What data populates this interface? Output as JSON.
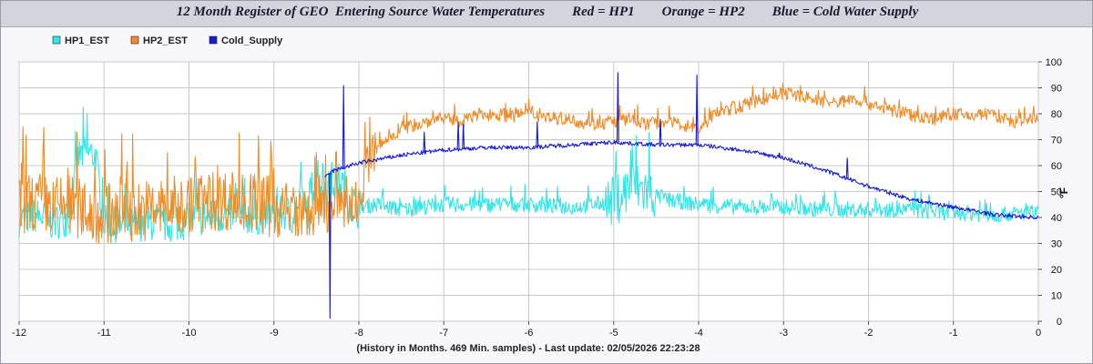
{
  "chart_data": {
    "type": "line",
    "title": "12 Month Register of GEO  Entering Source Water Temperatures        Red = HP1        Orange = HP2        Blue = Cold Water Supply",
    "xlabel": "(History in Months. 469 Min. samples) - Last update: 02/05/2026 22:23:28",
    "ylabel": "°F",
    "xlim": [
      -12,
      0
    ],
    "ylim": [
      0,
      100
    ],
    "x_ticks": [
      "-12",
      "-11",
      "-10",
      "-9",
      "-8",
      "-7",
      "-6",
      "-5",
      "-4",
      "-3",
      "-2",
      "-1",
      "0"
    ],
    "y_ticks": [
      "0",
      "10",
      "20",
      "30",
      "40",
      "50",
      "60",
      "70",
      "80",
      "90",
      "100"
    ],
    "grid": true,
    "legend_position": "top-left",
    "series": [
      {
        "name": "HP1_EST",
        "color": "#33e6e6",
        "x": [
          -12,
          -11.8,
          -11.6,
          -11.4,
          -11.3,
          -11.2,
          -11.1,
          -11.0,
          -10.8,
          -10.5,
          -10.2,
          -10.0,
          -9.8,
          -9.5,
          -9.2,
          -9.0,
          -8.8,
          -8.6,
          -8.5,
          -8.4,
          -8.3,
          -8.2,
          -8.1,
          -8.0,
          -7.8,
          -7.5,
          -7.0,
          -6.5,
          -6.0,
          -5.5,
          -5.0,
          -4.8,
          -4.6,
          -4.4,
          -4.0,
          -3.5,
          -3.0,
          -2.5,
          -2.0,
          -1.5,
          -1.2,
          -1.0,
          -0.5,
          0
        ],
        "values": [
          39,
          41,
          38,
          40,
          64,
          65,
          64,
          38,
          37,
          38,
          37,
          39,
          40,
          41,
          40,
          41,
          42,
          43,
          58,
          50,
          54,
          52,
          46,
          44,
          45,
          43,
          45,
          45,
          45,
          44,
          46,
          52,
          50,
          47,
          45,
          44,
          44,
          43,
          43,
          43,
          42,
          42,
          41,
          42
        ]
      },
      {
        "name": "HP2_EST",
        "color": "#f08c28",
        "x": [
          -12,
          -11.8,
          -11.6,
          -11.4,
          -11.2,
          -11.0,
          -10.8,
          -10.5,
          -10.2,
          -10.0,
          -9.8,
          -9.5,
          -9.2,
          -9.0,
          -8.8,
          -8.6,
          -8.4,
          -8.2,
          -8.0,
          -7.9,
          -7.8,
          -7.6,
          -7.4,
          -7.2,
          -7.0,
          -6.8,
          -6.6,
          -6.4,
          -6.2,
          -6.0,
          -5.8,
          -5.6,
          -5.4,
          -5.2,
          -5.0,
          -4.8,
          -4.6,
          -4.4,
          -4.2,
          -4.0,
          -3.8,
          -3.6,
          -3.4,
          -3.2,
          -3.0,
          -2.8,
          -2.6,
          -2.4,
          -2.2,
          -2.0,
          -1.8,
          -1.6,
          -1.4,
          -1.2,
          -1.0,
          -0.8,
          -0.6,
          -0.4,
          -0.2,
          0
        ],
        "values": [
          45,
          46,
          44,
          45,
          42,
          41,
          42,
          43,
          44,
          45,
          46,
          47,
          45,
          44,
          42,
          41,
          43,
          44,
          45,
          60,
          66,
          72,
          75,
          77,
          78,
          77,
          79,
          80,
          79,
          80,
          79,
          78,
          77,
          76,
          77,
          78,
          76,
          77,
          76,
          74,
          80,
          82,
          84,
          86,
          88,
          87,
          85,
          84,
          86,
          84,
          82,
          80,
          79,
          78,
          80,
          79,
          80,
          78,
          76,
          79
        ]
      },
      {
        "name": "Cold_Supply",
        "color": "#1a1ad2",
        "x": [
          -8.4,
          -8.35,
          -8.3,
          -8.2,
          -8.0,
          -7.5,
          -7.0,
          -6.5,
          -6.0,
          -5.5,
          -5.0,
          -4.5,
          -4.0,
          -3.5,
          -3.0,
          -2.5,
          -2.0,
          -1.5,
          -1.0,
          -0.5,
          0
        ],
        "values": [
          55,
          57,
          58,
          59,
          61,
          64,
          66,
          67,
          67,
          68,
          69,
          68,
          68,
          66,
          63,
          58,
          52,
          47,
          44,
          41,
          40
        ]
      }
    ],
    "spikes": [
      {
        "series": "Cold_Supply",
        "x": -8.34,
        "value": 1
      },
      {
        "series": "Cold_Supply",
        "x": -8.18,
        "value": 91
      },
      {
        "series": "Cold_Supply",
        "x": -7.23,
        "value": 73
      },
      {
        "series": "Cold_Supply",
        "x": -6.83,
        "value": 77
      },
      {
        "series": "Cold_Supply",
        "x": -6.77,
        "value": 76
      },
      {
        "series": "Cold_Supply",
        "x": -5.9,
        "value": 77
      },
      {
        "series": "Cold_Supply",
        "x": -4.95,
        "value": 96
      },
      {
        "series": "Cold_Supply",
        "x": -4.45,
        "value": 78
      },
      {
        "series": "Cold_Supply",
        "x": -4.02,
        "value": 95
      },
      {
        "series": "Cold_Supply",
        "x": -3.05,
        "value": 65
      },
      {
        "series": "Cold_Supply",
        "x": -2.25,
        "value": 63
      }
    ]
  }
}
